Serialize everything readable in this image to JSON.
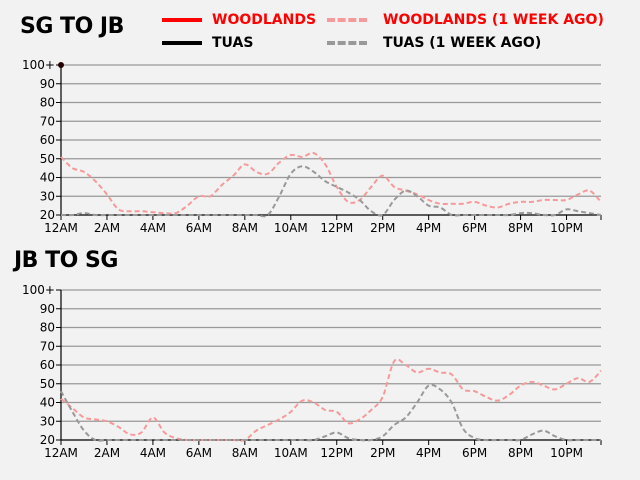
{
  "legend": {
    "woodlands": "WOODLANDS",
    "woodlands_week": "WOODLANDS (1 WEEK AGO)",
    "tuas": "TUAS",
    "tuas_week": "TUAS (1 WEEK AGO)"
  },
  "colors": {
    "woodlands": "#ff0000",
    "woodlands_week": "#f59a9a",
    "tuas": "#000000",
    "tuas_week": "#999999"
  },
  "chart_data": [
    {
      "type": "line",
      "title": "SG TO JB",
      "x_tick_labels": [
        "12AM",
        "2AM",
        "4AM",
        "6AM",
        "8AM",
        "10AM",
        "12PM",
        "2PM",
        "4PM",
        "6PM",
        "8PM",
        "10PM"
      ],
      "y_tick_labels": [
        "20",
        "30",
        "40",
        "50",
        "60",
        "70",
        "80",
        "90",
        "100+"
      ],
      "ylim": [
        20,
        100
      ],
      "xlim_hours": [
        0,
        23.5
      ],
      "grid": true,
      "current_point": {
        "series": "Woodlands",
        "hour": 0,
        "value": 100
      },
      "x_hours_step": 0.5,
      "series": [
        {
          "name": "Woodlands (1 week ago)",
          "style": "dashed",
          "values": [
            51,
            45,
            43,
            38,
            31,
            23,
            22,
            22,
            21.5,
            21,
            21,
            25,
            30,
            30,
            36,
            41,
            47,
            43,
            42,
            48,
            52,
            51,
            53,
            47,
            35,
            27,
            28,
            35,
            41,
            35,
            33,
            31,
            28,
            26,
            26,
            26,
            27,
            25,
            24,
            26,
            27,
            27,
            28,
            28,
            28,
            31,
            33,
            27
          ]
        },
        {
          "name": "Tuas (1 week ago)",
          "style": "dashed",
          "values": [
            20,
            20,
            21,
            20,
            20,
            20,
            20,
            20,
            20,
            20,
            20,
            20,
            20,
            20,
            20,
            20,
            20,
            20,
            20,
            30,
            42,
            46,
            43,
            38,
            35,
            32,
            28,
            22,
            20,
            28,
            33,
            30,
            25,
            24,
            20,
            20,
            20,
            20,
            20,
            20,
            21,
            21,
            20,
            20,
            23,
            22,
            21,
            20
          ]
        }
      ]
    },
    {
      "type": "line",
      "title": "JB TO SG",
      "x_tick_labels": [
        "12AM",
        "2AM",
        "4AM",
        "6AM",
        "8AM",
        "10AM",
        "12PM",
        "2PM",
        "4PM",
        "6PM",
        "8PM",
        "10PM"
      ],
      "y_tick_labels": [
        "20",
        "30",
        "40",
        "50",
        "60",
        "70",
        "80",
        "90",
        "100+"
      ],
      "ylim": [
        20,
        100
      ],
      "xlim_hours": [
        0,
        23.5
      ],
      "grid": true,
      "x_hours_step": 0.5,
      "series": [
        {
          "name": "Woodlands (1 week ago)",
          "style": "dashed",
          "values": [
            42,
            37,
            32,
            31,
            30,
            27,
            23,
            24,
            32,
            24,
            21,
            20,
            20,
            20,
            20,
            20,
            20,
            25,
            28,
            31,
            35,
            41,
            40,
            36,
            35,
            29,
            31,
            36,
            43,
            62,
            60,
            56,
            58,
            56,
            55,
            47,
            46,
            43,
            41,
            44,
            49,
            51,
            49,
            47,
            50,
            53,
            51,
            57
          ]
        },
        {
          "name": "Tuas (1 week ago)",
          "style": "dashed",
          "values": [
            46,
            35,
            25,
            20,
            20,
            20,
            20,
            20,
            20,
            20,
            20,
            20,
            20,
            20,
            20,
            20,
            20,
            20,
            20,
            20,
            20,
            20,
            20,
            22,
            24,
            21,
            20,
            20,
            22,
            28,
            32,
            40,
            49,
            47,
            40,
            26,
            21,
            20,
            20,
            20,
            20,
            23,
            25,
            22,
            20,
            20,
            20,
            20
          ]
        }
      ]
    }
  ]
}
